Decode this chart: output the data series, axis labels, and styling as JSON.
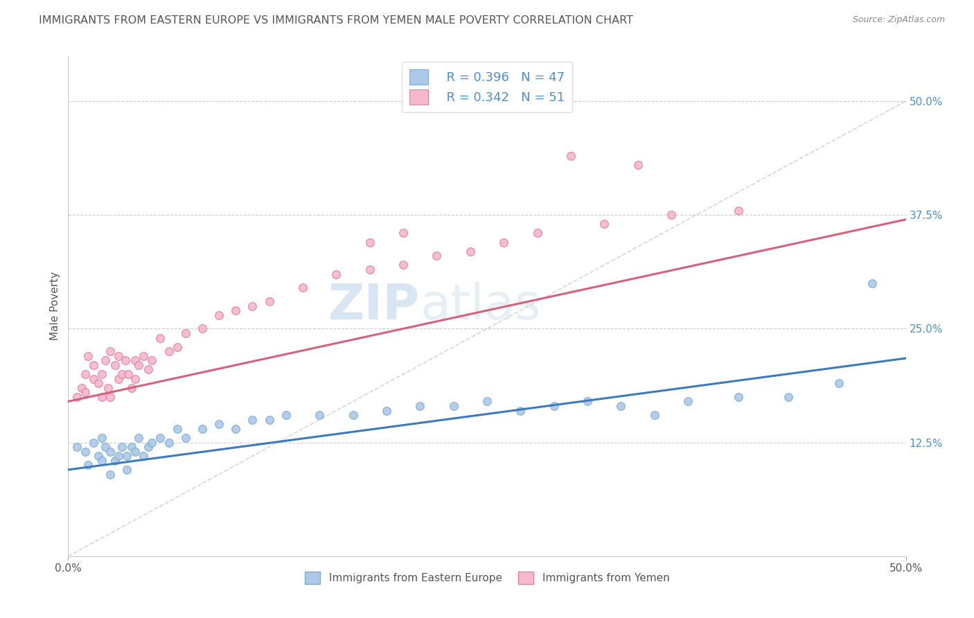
{
  "title": "IMMIGRANTS FROM EASTERN EUROPE VS IMMIGRANTS FROM YEMEN MALE POVERTY CORRELATION CHART",
  "source": "Source: ZipAtlas.com",
  "ylabel": "Male Poverty",
  "xmin": 0.0,
  "xmax": 0.5,
  "ymin": 0.0,
  "ymax": 0.55,
  "series1_label": "Immigrants from Eastern Europe",
  "series1_R": "0.396",
  "series1_N": "47",
  "series1_color": "#adc8e8",
  "series1_edge": "#7aafd4",
  "series2_label": "Immigrants from Yemen",
  "series2_R": "0.342",
  "series2_N": "51",
  "series2_color": "#f5b8cc",
  "series2_edge": "#e87fa0",
  "trend1_color": "#3a7abf",
  "trend2_color": "#d9607a",
  "ref_line_color": "#cccccc",
  "watermark_zip": "ZIP",
  "watermark_atlas": "atlas",
  "background_color": "#ffffff",
  "title_color": "#555555",
  "title_fontsize": 11.5,
  "axis_color": "#4a90d9",
  "legend_color": "#4a90d9",
  "trend1_intercept": 0.095,
  "trend1_slope": 0.245,
  "trend2_intercept": 0.17,
  "trend2_slope": 0.4,
  "series1_x": [
    0.005,
    0.01,
    0.012,
    0.015,
    0.018,
    0.02,
    0.02,
    0.022,
    0.025,
    0.025,
    0.028,
    0.03,
    0.032,
    0.035,
    0.035,
    0.038,
    0.04,
    0.042,
    0.045,
    0.048,
    0.05,
    0.055,
    0.06,
    0.065,
    0.07,
    0.08,
    0.09,
    0.1,
    0.11,
    0.12,
    0.13,
    0.15,
    0.17,
    0.19,
    0.21,
    0.23,
    0.25,
    0.27,
    0.29,
    0.31,
    0.33,
    0.35,
    0.37,
    0.4,
    0.43,
    0.46,
    0.48
  ],
  "series1_y": [
    0.12,
    0.115,
    0.1,
    0.125,
    0.11,
    0.13,
    0.105,
    0.12,
    0.09,
    0.115,
    0.105,
    0.11,
    0.12,
    0.095,
    0.11,
    0.12,
    0.115,
    0.13,
    0.11,
    0.12,
    0.125,
    0.13,
    0.125,
    0.14,
    0.13,
    0.14,
    0.145,
    0.14,
    0.15,
    0.15,
    0.155,
    0.155,
    0.155,
    0.16,
    0.165,
    0.165,
    0.17,
    0.16,
    0.165,
    0.17,
    0.165,
    0.155,
    0.17,
    0.175,
    0.175,
    0.19,
    0.3
  ],
  "series2_x": [
    0.005,
    0.008,
    0.01,
    0.01,
    0.012,
    0.015,
    0.015,
    0.018,
    0.02,
    0.02,
    0.022,
    0.024,
    0.025,
    0.025,
    0.028,
    0.03,
    0.03,
    0.032,
    0.034,
    0.036,
    0.038,
    0.04,
    0.04,
    0.042,
    0.045,
    0.048,
    0.05,
    0.055,
    0.06,
    0.065,
    0.07,
    0.08,
    0.09,
    0.1,
    0.11,
    0.12,
    0.14,
    0.16,
    0.18,
    0.2,
    0.22,
    0.24,
    0.26,
    0.28,
    0.32,
    0.36,
    0.4,
    0.18,
    0.2,
    0.3,
    0.34
  ],
  "series2_y": [
    0.175,
    0.185,
    0.2,
    0.18,
    0.22,
    0.195,
    0.21,
    0.19,
    0.175,
    0.2,
    0.215,
    0.185,
    0.225,
    0.175,
    0.21,
    0.195,
    0.22,
    0.2,
    0.215,
    0.2,
    0.185,
    0.215,
    0.195,
    0.21,
    0.22,
    0.205,
    0.215,
    0.24,
    0.225,
    0.23,
    0.245,
    0.25,
    0.265,
    0.27,
    0.275,
    0.28,
    0.295,
    0.31,
    0.315,
    0.32,
    0.33,
    0.335,
    0.345,
    0.355,
    0.365,
    0.375,
    0.38,
    0.345,
    0.355,
    0.44,
    0.43
  ]
}
